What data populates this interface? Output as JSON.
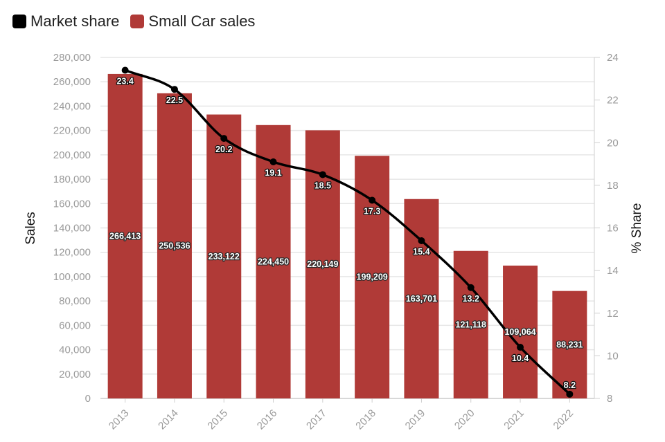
{
  "legend": [
    {
      "label": "Market share",
      "color": "#000000"
    },
    {
      "label": "Small Car sales",
      "color": "#b03a37"
    }
  ],
  "chart_data": {
    "type": "bar",
    "categories": [
      "2013",
      "2014",
      "2015",
      "2016",
      "2017",
      "2018",
      "2019",
      "2020",
      "2021",
      "2022"
    ],
    "series": [
      {
        "name": "Small Car sales",
        "type": "bar",
        "axis": "left",
        "color": "#b03a37",
        "values": [
          266413,
          250536,
          233122,
          224450,
          220149,
          199209,
          163701,
          121118,
          109064,
          88231
        ],
        "labels": [
          "266,413",
          "250,536",
          "233,122",
          "224,450",
          "220,149",
          "199,209",
          "163,701",
          "121,118",
          "109,064",
          "88,231"
        ]
      },
      {
        "name": "Market share",
        "type": "line",
        "axis": "right",
        "color": "#000000",
        "values": [
          23.4,
          22.5,
          20.2,
          19.1,
          18.5,
          17.3,
          15.4,
          13.2,
          10.4,
          8.2
        ],
        "labels": [
          "23.4",
          "22.5",
          "20.2",
          "19.1",
          "18.5",
          "17.3",
          "15.4",
          "13.2",
          "10.4",
          "8.2"
        ]
      }
    ],
    "ylabel": "Sales",
    "y2label": "% Share",
    "ylim": [
      0,
      280000
    ],
    "y2lim": [
      8,
      24
    ],
    "yticks": [
      "0",
      "20,000",
      "40,000",
      "60,000",
      "80,000",
      "100,000",
      "120,000",
      "140,000",
      "160,000",
      "180,000",
      "200,000",
      "220,000",
      "240,000",
      "260,000",
      "280,000"
    ],
    "y2ticks": [
      "8",
      "10",
      "12",
      "14",
      "16",
      "18",
      "20",
      "22",
      "24"
    ],
    "grid": true,
    "legend_position": "top-left"
  }
}
